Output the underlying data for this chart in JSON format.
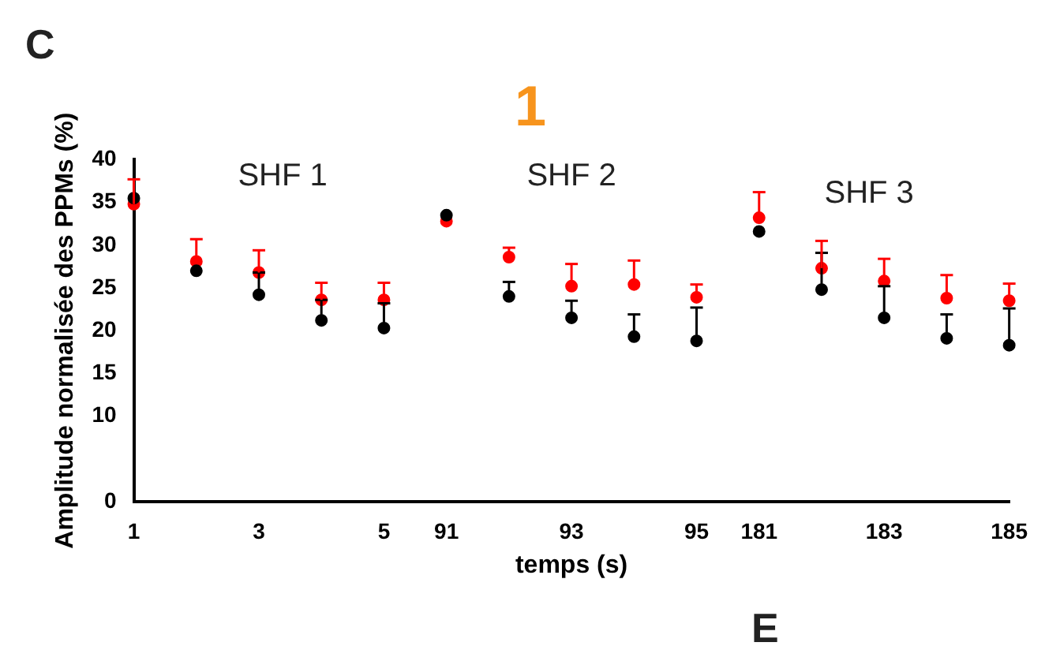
{
  "chart_data": {
    "type": "scatter",
    "title": "1",
    "xlabel": "temps (s)",
    "ylabel": "Amplitude normalisée des PPMs (%)",
    "categories": [
      "1",
      null,
      "3",
      null,
      "5",
      "91",
      null,
      "93",
      null,
      "95",
      "181",
      null,
      "183",
      null,
      "185"
    ],
    "series": [
      {
        "color": "#000000",
        "values": [
          35.5,
          27.0,
          24.2,
          21.2,
          20.3,
          33.5,
          24.0,
          21.5,
          19.3,
          18.8,
          31.6,
          24.8,
          21.5,
          19.1,
          18.3
        ],
        "errors": [
          null,
          null,
          [
            24.2,
            26.8
          ],
          [
            21.2,
            23.6
          ],
          [
            20.3,
            23.2
          ],
          null,
          [
            24.0,
            25.7
          ],
          [
            21.5,
            23.5
          ],
          [
            19.3,
            21.9
          ],
          [
            18.8,
            22.7
          ],
          null,
          [
            24.8,
            29.1
          ],
          [
            21.5,
            25.2
          ],
          [
            19.1,
            21.9
          ],
          [
            18.3,
            22.6
          ]
        ]
      },
      {
        "color": "#ff0000",
        "values": [
          34.8,
          28.1,
          26.8,
          23.6,
          23.6,
          32.8,
          28.6,
          25.2,
          25.4,
          23.9,
          33.2,
          27.3,
          25.8,
          23.8,
          23.5
        ],
        "errors": [
          [
            34.8,
            37.7
          ],
          [
            28.1,
            30.7
          ],
          [
            26.8,
            29.4
          ],
          [
            23.6,
            25.6
          ],
          [
            23.6,
            25.6
          ],
          null,
          [
            28.6,
            29.7
          ],
          [
            25.2,
            27.8
          ],
          [
            25.4,
            28.2
          ],
          [
            23.9,
            25.4
          ],
          [
            33.2,
            36.2
          ],
          [
            27.3,
            30.5
          ],
          [
            25.8,
            28.4
          ],
          [
            23.8,
            26.5
          ],
          [
            23.5,
            25.5
          ]
        ]
      }
    ],
    "ylim": [
      0,
      40
    ],
    "yticks": [
      0,
      10,
      15,
      20,
      25,
      30,
      35,
      40
    ],
    "marker": "circle",
    "grid": false,
    "legend": false,
    "annotations": [
      "C",
      "SHF 1",
      "SHF 2",
      "SHF 3",
      "E"
    ]
  }
}
